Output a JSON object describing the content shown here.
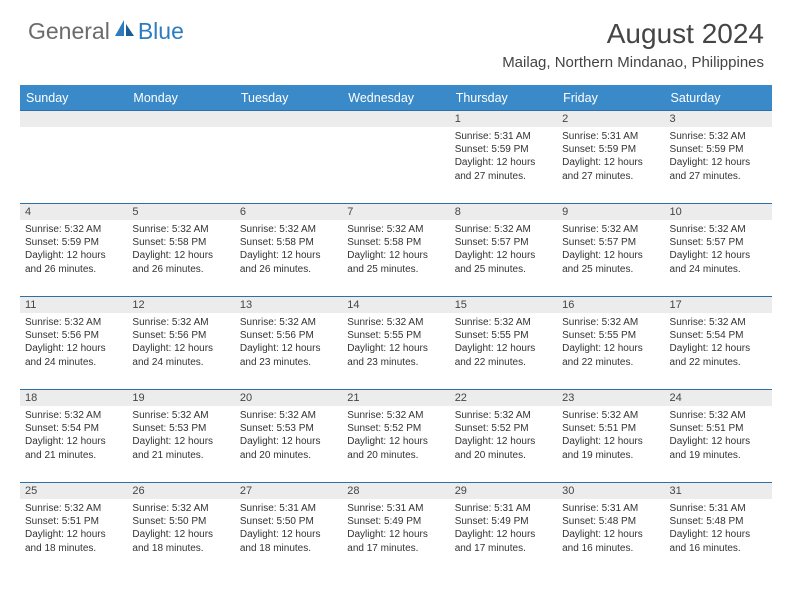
{
  "logo": {
    "general": "General",
    "blue": "Blue"
  },
  "title": "August 2024",
  "location": "Mailag, Northern Mindanao, Philippines",
  "colors": {
    "header_bg": "#3a8ac9",
    "header_text": "#ffffff",
    "row_divider": "#2f6fa8",
    "daynum_bg": "#ececec",
    "text": "#333333",
    "title_text": "#454545",
    "logo_gray": "#6b6b6b",
    "logo_blue": "#2e7cc0",
    "page_bg": "#ffffff"
  },
  "weekdays": [
    "Sunday",
    "Monday",
    "Tuesday",
    "Wednesday",
    "Thursday",
    "Friday",
    "Saturday"
  ],
  "weeks": [
    [
      null,
      null,
      null,
      null,
      {
        "n": "1",
        "sr": "Sunrise: 5:31 AM",
        "ss": "Sunset: 5:59 PM",
        "dl": "Daylight: 12 hours and 27 minutes."
      },
      {
        "n": "2",
        "sr": "Sunrise: 5:31 AM",
        "ss": "Sunset: 5:59 PM",
        "dl": "Daylight: 12 hours and 27 minutes."
      },
      {
        "n": "3",
        "sr": "Sunrise: 5:32 AM",
        "ss": "Sunset: 5:59 PM",
        "dl": "Daylight: 12 hours and 27 minutes."
      }
    ],
    [
      {
        "n": "4",
        "sr": "Sunrise: 5:32 AM",
        "ss": "Sunset: 5:59 PM",
        "dl": "Daylight: 12 hours and 26 minutes."
      },
      {
        "n": "5",
        "sr": "Sunrise: 5:32 AM",
        "ss": "Sunset: 5:58 PM",
        "dl": "Daylight: 12 hours and 26 minutes."
      },
      {
        "n": "6",
        "sr": "Sunrise: 5:32 AM",
        "ss": "Sunset: 5:58 PM",
        "dl": "Daylight: 12 hours and 26 minutes."
      },
      {
        "n": "7",
        "sr": "Sunrise: 5:32 AM",
        "ss": "Sunset: 5:58 PM",
        "dl": "Daylight: 12 hours and 25 minutes."
      },
      {
        "n": "8",
        "sr": "Sunrise: 5:32 AM",
        "ss": "Sunset: 5:57 PM",
        "dl": "Daylight: 12 hours and 25 minutes."
      },
      {
        "n": "9",
        "sr": "Sunrise: 5:32 AM",
        "ss": "Sunset: 5:57 PM",
        "dl": "Daylight: 12 hours and 25 minutes."
      },
      {
        "n": "10",
        "sr": "Sunrise: 5:32 AM",
        "ss": "Sunset: 5:57 PM",
        "dl": "Daylight: 12 hours and 24 minutes."
      }
    ],
    [
      {
        "n": "11",
        "sr": "Sunrise: 5:32 AM",
        "ss": "Sunset: 5:56 PM",
        "dl": "Daylight: 12 hours and 24 minutes."
      },
      {
        "n": "12",
        "sr": "Sunrise: 5:32 AM",
        "ss": "Sunset: 5:56 PM",
        "dl": "Daylight: 12 hours and 24 minutes."
      },
      {
        "n": "13",
        "sr": "Sunrise: 5:32 AM",
        "ss": "Sunset: 5:56 PM",
        "dl": "Daylight: 12 hours and 23 minutes."
      },
      {
        "n": "14",
        "sr": "Sunrise: 5:32 AM",
        "ss": "Sunset: 5:55 PM",
        "dl": "Daylight: 12 hours and 23 minutes."
      },
      {
        "n": "15",
        "sr": "Sunrise: 5:32 AM",
        "ss": "Sunset: 5:55 PM",
        "dl": "Daylight: 12 hours and 22 minutes."
      },
      {
        "n": "16",
        "sr": "Sunrise: 5:32 AM",
        "ss": "Sunset: 5:55 PM",
        "dl": "Daylight: 12 hours and 22 minutes."
      },
      {
        "n": "17",
        "sr": "Sunrise: 5:32 AM",
        "ss": "Sunset: 5:54 PM",
        "dl": "Daylight: 12 hours and 22 minutes."
      }
    ],
    [
      {
        "n": "18",
        "sr": "Sunrise: 5:32 AM",
        "ss": "Sunset: 5:54 PM",
        "dl": "Daylight: 12 hours and 21 minutes."
      },
      {
        "n": "19",
        "sr": "Sunrise: 5:32 AM",
        "ss": "Sunset: 5:53 PM",
        "dl": "Daylight: 12 hours and 21 minutes."
      },
      {
        "n": "20",
        "sr": "Sunrise: 5:32 AM",
        "ss": "Sunset: 5:53 PM",
        "dl": "Daylight: 12 hours and 20 minutes."
      },
      {
        "n": "21",
        "sr": "Sunrise: 5:32 AM",
        "ss": "Sunset: 5:52 PM",
        "dl": "Daylight: 12 hours and 20 minutes."
      },
      {
        "n": "22",
        "sr": "Sunrise: 5:32 AM",
        "ss": "Sunset: 5:52 PM",
        "dl": "Daylight: 12 hours and 20 minutes."
      },
      {
        "n": "23",
        "sr": "Sunrise: 5:32 AM",
        "ss": "Sunset: 5:51 PM",
        "dl": "Daylight: 12 hours and 19 minutes."
      },
      {
        "n": "24",
        "sr": "Sunrise: 5:32 AM",
        "ss": "Sunset: 5:51 PM",
        "dl": "Daylight: 12 hours and 19 minutes."
      }
    ],
    [
      {
        "n": "25",
        "sr": "Sunrise: 5:32 AM",
        "ss": "Sunset: 5:51 PM",
        "dl": "Daylight: 12 hours and 18 minutes."
      },
      {
        "n": "26",
        "sr": "Sunrise: 5:32 AM",
        "ss": "Sunset: 5:50 PM",
        "dl": "Daylight: 12 hours and 18 minutes."
      },
      {
        "n": "27",
        "sr": "Sunrise: 5:31 AM",
        "ss": "Sunset: 5:50 PM",
        "dl": "Daylight: 12 hours and 18 minutes."
      },
      {
        "n": "28",
        "sr": "Sunrise: 5:31 AM",
        "ss": "Sunset: 5:49 PM",
        "dl": "Daylight: 12 hours and 17 minutes."
      },
      {
        "n": "29",
        "sr": "Sunrise: 5:31 AM",
        "ss": "Sunset: 5:49 PM",
        "dl": "Daylight: 12 hours and 17 minutes."
      },
      {
        "n": "30",
        "sr": "Sunrise: 5:31 AM",
        "ss": "Sunset: 5:48 PM",
        "dl": "Daylight: 12 hours and 16 minutes."
      },
      {
        "n": "31",
        "sr": "Sunrise: 5:31 AM",
        "ss": "Sunset: 5:48 PM",
        "dl": "Daylight: 12 hours and 16 minutes."
      }
    ]
  ]
}
